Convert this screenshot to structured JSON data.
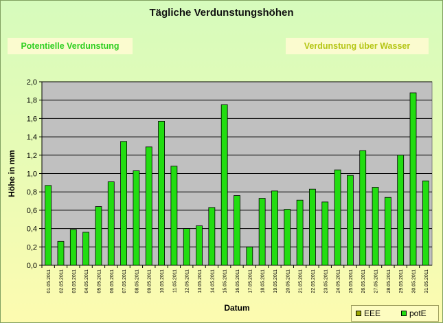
{
  "header": {
    "title": "Tägliche Verdunstungshöhen",
    "tab_potential": "Potentielle Verdunstung",
    "tab_wasser": "Verdunstung über Wasser"
  },
  "legend": {
    "items": [
      {
        "label": "EEE",
        "color": "#9ea900"
      },
      {
        "label": "potE",
        "color": "#22dd11"
      }
    ]
  },
  "chart_data": {
    "type": "bar",
    "title": "Tägliche Verdunstungshöhen",
    "xlabel": "Datum",
    "ylabel": "Höhe in mm",
    "ylim": [
      0,
      2
    ],
    "yticks": [
      "0,0",
      "0,2",
      "0,4",
      "0,6",
      "0,8",
      "1,0",
      "1,2",
      "1,4",
      "1,6",
      "1,8",
      "2,0"
    ],
    "grid": true,
    "legend_position": "bottom-right",
    "categories": [
      "01.05.2011",
      "02.05.2011",
      "03.05.2011",
      "04.05.2011",
      "05.05.2011",
      "06.05.2011",
      "07.05.2011",
      "08.05.2011",
      "09.05.2011",
      "10.05.2011",
      "11.05.2011",
      "12.05.2011",
      "13.05.2011",
      "14.05.2011",
      "15.05.2011",
      "16.05.2011",
      "17.05.2011",
      "18.05.2011",
      "19.05.2011",
      "20.05.2011",
      "21.05.2011",
      "22.05.2011",
      "23.05.2011",
      "24.05.2011",
      "25.05.2011",
      "26.05.2011",
      "27.05.2011",
      "28.05.2011",
      "29.05.2011",
      "30.05.2011",
      "31.05.2011"
    ],
    "series": [
      {
        "name": "potE",
        "color": "#22dd11",
        "values": [
          0.87,
          0.26,
          0.39,
          0.36,
          0.64,
          0.91,
          1.35,
          1.03,
          1.29,
          1.57,
          1.08,
          0.4,
          0.43,
          0.63,
          1.75,
          0.76,
          0.2,
          0.73,
          0.81,
          0.61,
          0.71,
          0.83,
          0.69,
          1.04,
          0.98,
          1.25,
          0.85,
          0.74,
          1.2,
          1.88,
          0.92
        ]
      }
    ]
  }
}
